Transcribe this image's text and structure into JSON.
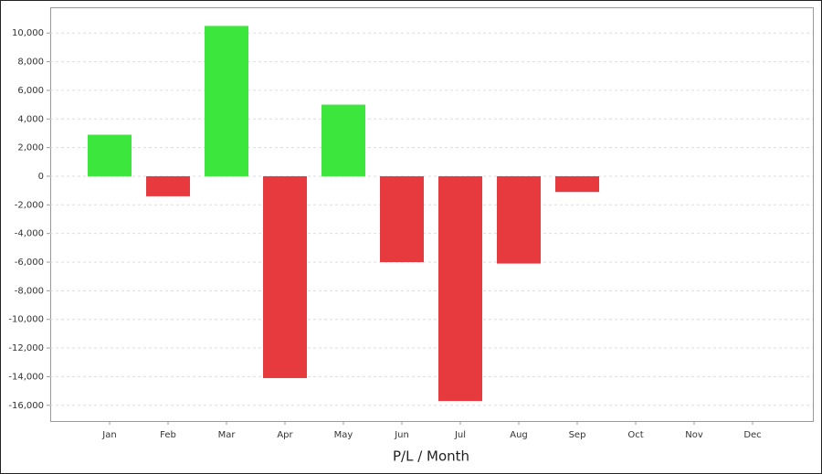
{
  "chart_data": {
    "type": "bar",
    "x_label": "P/L / Month",
    "categories": [
      "Jan",
      "Feb",
      "Mar",
      "Apr",
      "May",
      "Jun",
      "Jul",
      "Aug",
      "Sep",
      "Oct",
      "Nov",
      "Dec"
    ],
    "values": [
      2900,
      -1400,
      10500,
      -14100,
      5000,
      -6000,
      -15700,
      -6100,
      -1100,
      null,
      null,
      null
    ],
    "positive_color": "#3de63d",
    "negative_color": "#e63a3f",
    "ylim": [
      -17100,
      11800
    ],
    "yticks": [
      {
        "value": 10000,
        "label": "10,000"
      },
      {
        "value": 8000,
        "label": "8,000"
      },
      {
        "value": 6000,
        "label": "6,000"
      },
      {
        "value": 4000,
        "label": "4,000"
      },
      {
        "value": 2000,
        "label": "2,000"
      },
      0,
      {
        "value": -2000,
        "label": "-2,000"
      },
      {
        "value": -4000,
        "label": "-4,000"
      },
      {
        "value": -6000,
        "label": "-6,000"
      },
      {
        "value": -8000,
        "label": "-8,000"
      },
      {
        "value": -10000,
        "label": "-10,000"
      },
      {
        "value": -12000,
        "label": "-12,000"
      },
      {
        "value": -14000,
        "label": "-14,000"
      },
      {
        "value": -16000,
        "label": "-16,000"
      }
    ],
    "grid": true
  }
}
